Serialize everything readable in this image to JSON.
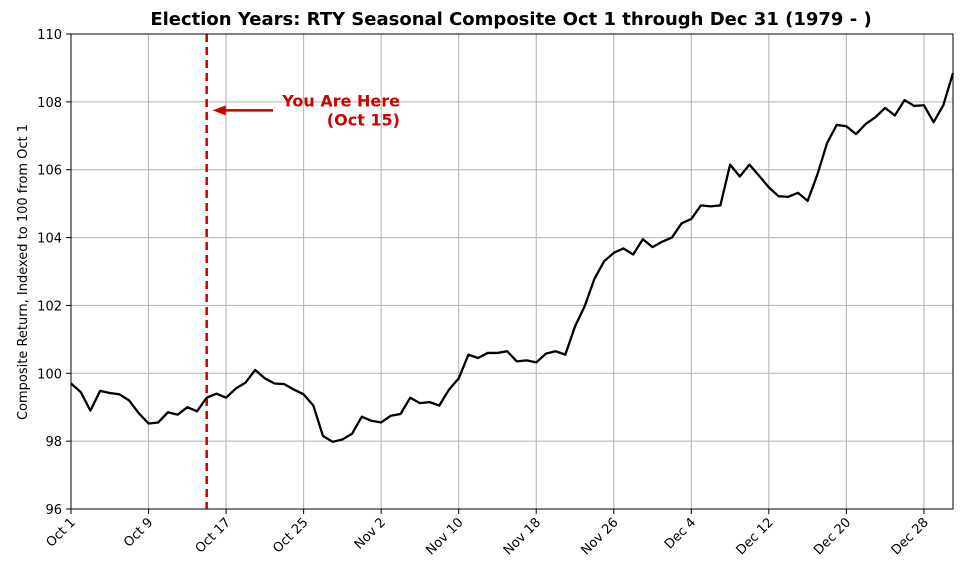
{
  "chart_data": {
    "type": "line",
    "title": "Election Years: RTY Seasonal Composite Oct 1 through Dec 31 (1979 - )",
    "xlabel": "",
    "ylabel": "Composite Return, Indexed to 100 from Oct 1",
    "ylim": [
      96,
      110
    ],
    "yticks": [
      96,
      98,
      100,
      102,
      104,
      106,
      108,
      110
    ],
    "xticks": [
      {
        "label": "Oct 1",
        "index": 0
      },
      {
        "label": "Oct 9",
        "index": 8
      },
      {
        "label": "Oct 17",
        "index": 16
      },
      {
        "label": "Oct 25",
        "index": 24
      },
      {
        "label": "Nov 2",
        "index": 32
      },
      {
        "label": "Nov 10",
        "index": 40
      },
      {
        "label": "Nov 18",
        "index": 48
      },
      {
        "label": "Nov 26",
        "index": 56
      },
      {
        "label": "Dec 4",
        "index": 64
      },
      {
        "label": "Dec 12",
        "index": 72
      },
      {
        "label": "Dec 20",
        "index": 80
      },
      {
        "label": "Dec 28",
        "index": 88
      }
    ],
    "grid": true,
    "series": [
      {
        "color": "#000000",
        "values": [
          99.7,
          99.45,
          98.9,
          99.48,
          99.42,
          99.38,
          99.2,
          98.82,
          98.52,
          98.55,
          98.85,
          98.78,
          99.0,
          98.88,
          99.28,
          99.4,
          99.28,
          99.55,
          99.72,
          100.1,
          99.85,
          99.7,
          99.68,
          99.52,
          99.38,
          99.05,
          98.15,
          97.98,
          98.05,
          98.22,
          98.72,
          98.6,
          98.55,
          98.75,
          98.8,
          99.28,
          99.12,
          99.15,
          99.05,
          99.52,
          99.85,
          100.55,
          100.45,
          100.6,
          100.6,
          100.65,
          100.35,
          100.38,
          100.32,
          100.58,
          100.65,
          100.55,
          101.38,
          101.98,
          102.78,
          103.3,
          103.55,
          103.68,
          103.5,
          103.95,
          103.72,
          103.88,
          104.0,
          104.42,
          104.55,
          104.95,
          104.92,
          104.95,
          106.15,
          105.8,
          106.15,
          105.82,
          105.48,
          105.22,
          105.2,
          105.32,
          105.08,
          105.85,
          106.78,
          107.32,
          107.28,
          107.05,
          107.35,
          107.55,
          107.82,
          107.6,
          108.05,
          107.88,
          107.9,
          107.4,
          107.9,
          108.85
        ]
      }
    ],
    "vline": {
      "index": 14,
      "color": "#cc0000",
      "style": "dashed"
    },
    "annotation": {
      "lines": [
        "You Are Here",
        "(Oct 15)"
      ],
      "color": "#cc0000",
      "y": 107.75
    }
  }
}
